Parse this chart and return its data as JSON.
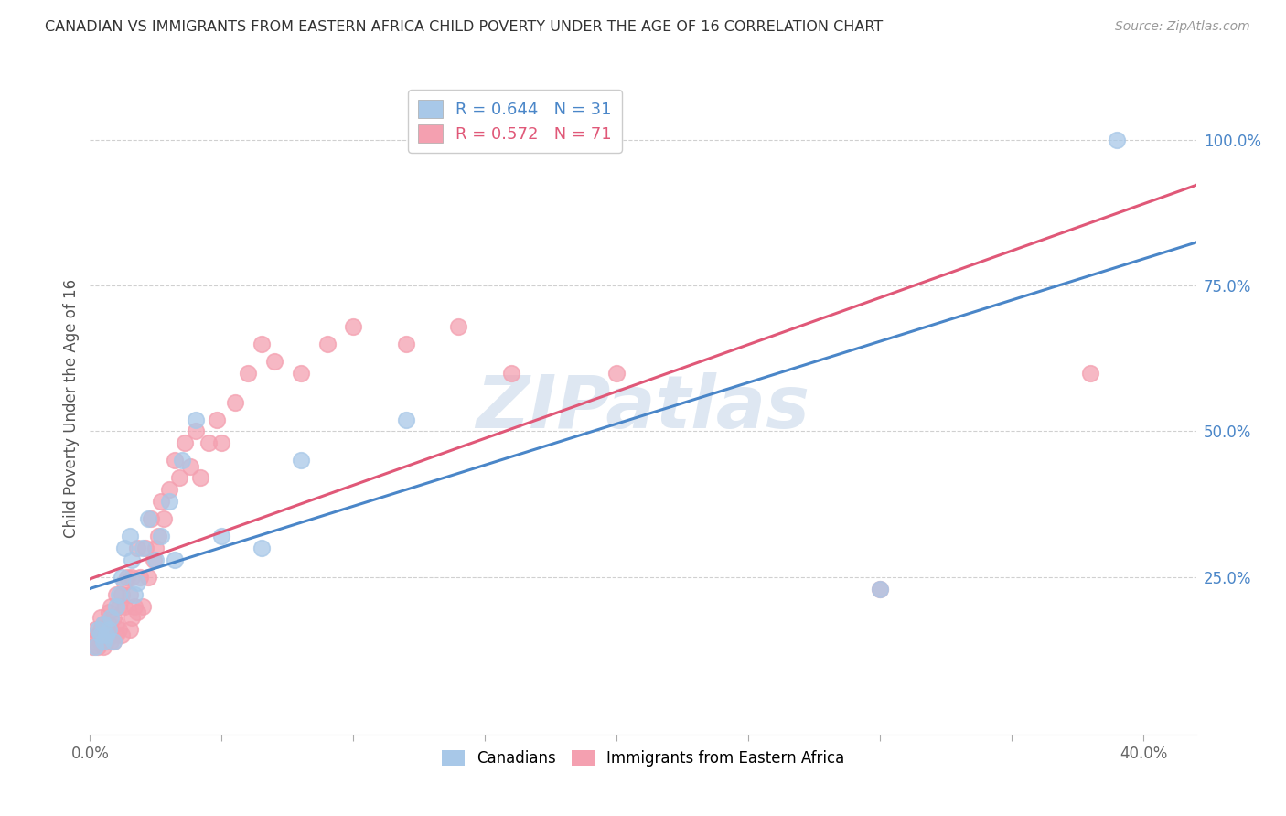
{
  "title": "CANADIAN VS IMMIGRANTS FROM EASTERN AFRICA CHILD POVERTY UNDER THE AGE OF 16 CORRELATION CHART",
  "source": "Source: ZipAtlas.com",
  "ylabel": "Child Poverty Under the Age of 16",
  "xlim": [
    0.0,
    0.42
  ],
  "ylim": [
    -0.02,
    1.1
  ],
  "xticks": [
    0.0,
    0.05,
    0.1,
    0.15,
    0.2,
    0.25,
    0.3,
    0.35,
    0.4
  ],
  "ytick_right_labels": [
    "100.0%",
    "75.0%",
    "50.0%",
    "25.0%"
  ],
  "ytick_right_values": [
    1.0,
    0.75,
    0.5,
    0.25
  ],
  "canadian_color": "#a8c8e8",
  "immigrant_color": "#f4a0b0",
  "canadian_line_color": "#4a86c8",
  "immigrant_line_color": "#e05878",
  "R_canadian": 0.644,
  "N_canadian": 31,
  "R_immigrant": 0.572,
  "N_immigrant": 71,
  "grid_color": "#d0d0d0",
  "background_color": "#ffffff",
  "watermark_color": "#c8d8ea",
  "canadians_x": [
    0.002,
    0.003,
    0.004,
    0.005,
    0.005,
    0.006,
    0.007,
    0.008,
    0.009,
    0.01,
    0.011,
    0.012,
    0.013,
    0.015,
    0.016,
    0.017,
    0.018,
    0.02,
    0.022,
    0.025,
    0.027,
    0.03,
    0.032,
    0.035,
    0.04,
    0.05,
    0.065,
    0.08,
    0.12,
    0.3,
    0.39
  ],
  "canadians_y": [
    0.13,
    0.16,
    0.15,
    0.14,
    0.17,
    0.15,
    0.16,
    0.18,
    0.14,
    0.2,
    0.22,
    0.25,
    0.3,
    0.32,
    0.28,
    0.22,
    0.24,
    0.3,
    0.35,
    0.28,
    0.32,
    0.38,
    0.28,
    0.45,
    0.52,
    0.32,
    0.3,
    0.45,
    0.52,
    0.23,
    1.0
  ],
  "immigrants_x": [
    0.001,
    0.002,
    0.002,
    0.003,
    0.003,
    0.004,
    0.004,
    0.004,
    0.005,
    0.005,
    0.005,
    0.006,
    0.006,
    0.007,
    0.007,
    0.007,
    0.008,
    0.008,
    0.008,
    0.009,
    0.009,
    0.01,
    0.01,
    0.01,
    0.011,
    0.011,
    0.012,
    0.012,
    0.013,
    0.013,
    0.014,
    0.015,
    0.015,
    0.016,
    0.016,
    0.017,
    0.018,
    0.018,
    0.019,
    0.02,
    0.021,
    0.022,
    0.023,
    0.024,
    0.025,
    0.026,
    0.027,
    0.028,
    0.03,
    0.032,
    0.034,
    0.036,
    0.038,
    0.04,
    0.042,
    0.045,
    0.048,
    0.05,
    0.055,
    0.06,
    0.065,
    0.07,
    0.08,
    0.09,
    0.1,
    0.12,
    0.14,
    0.16,
    0.2,
    0.3,
    0.38
  ],
  "immigrants_y": [
    0.13,
    0.14,
    0.16,
    0.13,
    0.15,
    0.14,
    0.16,
    0.18,
    0.13,
    0.15,
    0.17,
    0.14,
    0.16,
    0.15,
    0.17,
    0.19,
    0.14,
    0.16,
    0.2,
    0.14,
    0.18,
    0.15,
    0.17,
    0.22,
    0.16,
    0.2,
    0.15,
    0.22,
    0.2,
    0.24,
    0.25,
    0.16,
    0.22,
    0.18,
    0.25,
    0.2,
    0.19,
    0.3,
    0.25,
    0.2,
    0.3,
    0.25,
    0.35,
    0.28,
    0.3,
    0.32,
    0.38,
    0.35,
    0.4,
    0.45,
    0.42,
    0.48,
    0.44,
    0.5,
    0.42,
    0.48,
    0.52,
    0.48,
    0.55,
    0.6,
    0.65,
    0.62,
    0.6,
    0.65,
    0.68,
    0.65,
    0.68,
    0.6,
    0.6,
    0.23,
    0.6
  ]
}
